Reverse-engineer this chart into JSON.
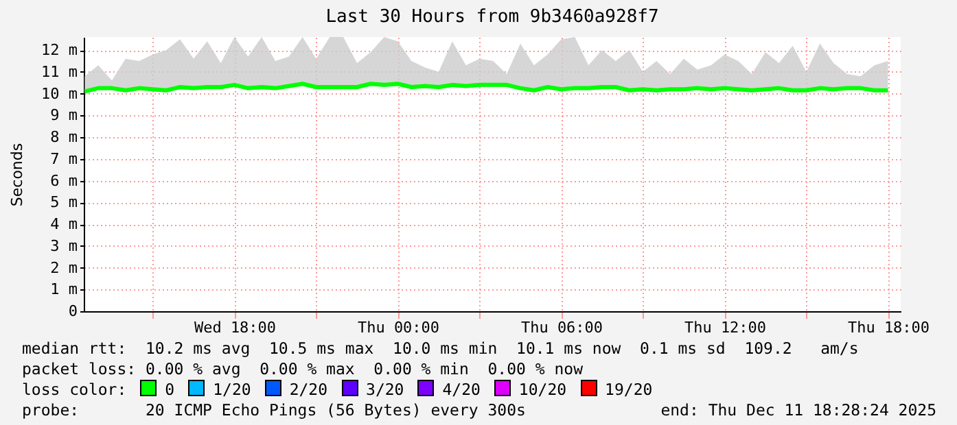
{
  "chart_data": {
    "type": "line",
    "title": "Last 30 Hours from 9b3460a928f7",
    "ylabel": "Seconds",
    "legend_title": "loss color:",
    "legend": "bottom",
    "grid": true,
    "marker": "none",
    "line_style": "solid",
    "xlim": [
      "2025-12-10T12:28",
      "2025-12-11T18:28"
    ],
    "xticks": [
      {
        "value": "2025-12-10T15:00",
        "label": null
      },
      {
        "value": "2025-12-10T18:00",
        "label": "Wed 18:00"
      },
      {
        "value": "2025-12-10T21:00",
        "label": null
      },
      {
        "value": "2025-12-11T00:00",
        "label": "Thu 00:00"
      },
      {
        "value": "2025-12-11T03:00",
        "label": null
      },
      {
        "value": "2025-12-11T06:00",
        "label": "Thu 06:00"
      },
      {
        "value": "2025-12-11T09:00",
        "label": null
      },
      {
        "value": "2025-12-11T12:00",
        "label": "Thu 12:00"
      },
      {
        "value": "2025-12-11T15:00",
        "label": null
      },
      {
        "value": "2025-12-11T18:00",
        "label": "Thu 18:00"
      }
    ],
    "ylim": [
      0,
      12.6
    ],
    "yticks": [
      0,
      {
        "value": 1,
        "label": "1 m"
      },
      {
        "value": 2,
        "label": "2 m"
      },
      {
        "value": 3,
        "label": "3 m"
      },
      {
        "value": 4,
        "label": "4 m"
      },
      {
        "value": 5,
        "label": "5 m"
      },
      {
        "value": 6,
        "label": "6 m"
      },
      {
        "value": 7,
        "label": "7 m"
      },
      {
        "value": 8,
        "label": "8 m"
      },
      {
        "value": 9,
        "label": "9 m"
      },
      {
        "value": 10,
        "label": "10 m"
      },
      {
        "value": 11,
        "label": "11 m"
      },
      {
        "value": 12,
        "label": "12 m"
      }
    ],
    "x": [
      "2025-12-10T12:30",
      "2025-12-10T13:00",
      "2025-12-10T13:30",
      "2025-12-10T14:00",
      "2025-12-10T14:30",
      "2025-12-10T15:00",
      "2025-12-10T15:30",
      "2025-12-10T16:00",
      "2025-12-10T16:30",
      "2025-12-10T17:00",
      "2025-12-10T17:30",
      "2025-12-10T18:00",
      "2025-12-10T18:30",
      "2025-12-10T19:00",
      "2025-12-10T19:30",
      "2025-12-10T20:00",
      "2025-12-10T20:30",
      "2025-12-10T21:00",
      "2025-12-10T21:30",
      "2025-12-10T22:00",
      "2025-12-10T22:30",
      "2025-12-10T23:00",
      "2025-12-10T23:30",
      "2025-12-11T00:00",
      "2025-12-11T00:30",
      "2025-12-11T01:00",
      "2025-12-11T01:30",
      "2025-12-11T02:00",
      "2025-12-11T02:30",
      "2025-12-11T03:00",
      "2025-12-11T03:30",
      "2025-12-11T04:00",
      "2025-12-11T04:30",
      "2025-12-11T05:00",
      "2025-12-11T05:30",
      "2025-12-11T06:00",
      "2025-12-11T06:30",
      "2025-12-11T07:00",
      "2025-12-11T07:30",
      "2025-12-11T08:00",
      "2025-12-11T08:30",
      "2025-12-11T09:00",
      "2025-12-11T09:30",
      "2025-12-11T10:00",
      "2025-12-11T10:30",
      "2025-12-11T11:00",
      "2025-12-11T11:30",
      "2025-12-11T12:00",
      "2025-12-11T12:30",
      "2025-12-11T13:00",
      "2025-12-11T13:30",
      "2025-12-11T14:00",
      "2025-12-11T14:30",
      "2025-12-11T15:00",
      "2025-12-11T15:30",
      "2025-12-11T16:00",
      "2025-12-11T16:30",
      "2025-12-11T17:00",
      "2025-12-11T17:30",
      "2025-12-11T18:00"
    ],
    "series": [
      {
        "name": "0",
        "color": "#00ff00",
        "values": [
          10.1,
          10.25,
          10.25,
          10.15,
          10.25,
          10.2,
          10.15,
          10.3,
          10.25,
          10.3,
          10.3,
          10.4,
          10.25,
          10.3,
          10.25,
          10.35,
          10.45,
          10.3,
          10.3,
          10.3,
          10.3,
          10.45,
          10.4,
          10.45,
          10.3,
          10.35,
          10.3,
          10.4,
          10.35,
          10.4,
          10.4,
          10.4,
          10.25,
          10.15,
          10.3,
          10.2,
          10.25,
          10.25,
          10.3,
          10.3,
          10.15,
          10.2,
          10.15,
          10.2,
          10.2,
          10.25,
          10.2,
          10.25,
          10.2,
          10.15,
          10.2,
          10.25,
          10.15,
          10.15,
          10.25,
          10.2,
          10.25,
          10.25,
          10.15,
          10.15
        ],
        "lower": [
          10.0,
          10.15,
          10.15,
          10.05,
          10.15,
          10.1,
          10.05,
          10.2,
          10.15,
          10.2,
          10.2,
          10.3,
          10.15,
          10.2,
          10.15,
          10.25,
          10.35,
          10.2,
          10.2,
          10.2,
          10.2,
          10.35,
          10.3,
          10.35,
          10.2,
          10.25,
          10.2,
          10.3,
          10.25,
          10.3,
          10.3,
          10.3,
          10.15,
          10.05,
          10.2,
          10.1,
          10.15,
          10.15,
          10.2,
          10.2,
          10.05,
          10.1,
          10.05,
          10.1,
          10.1,
          10.15,
          10.1,
          10.15,
          10.1,
          10.05,
          10.1,
          10.15,
          10.05,
          10.05,
          10.15,
          10.1,
          10.15,
          10.15,
          10.05,
          10.05
        ],
        "upper": [
          10.8,
          11.3,
          10.6,
          11.6,
          11.5,
          11.8,
          12.0,
          12.5,
          11.6,
          12.4,
          11.4,
          12.6,
          11.7,
          12.6,
          11.5,
          11.7,
          12.6,
          11.6,
          12.6,
          12.6,
          11.4,
          11.9,
          12.6,
          12.4,
          11.5,
          11.2,
          11.0,
          12.4,
          11.3,
          11.6,
          11.5,
          10.9,
          12.3,
          11.3,
          11.8,
          12.5,
          12.6,
          11.3,
          12.0,
          11.5,
          12.0,
          11.0,
          11.5,
          10.9,
          11.6,
          11.1,
          11.3,
          11.8,
          11.5,
          10.9,
          11.9,
          11.4,
          12.2,
          11.0,
          12.3,
          11.4,
          10.9,
          10.8,
          11.3,
          11.5
        ]
      },
      {
        "name": "1/20",
        "color": "#00b8ff",
        "values": [
          null,
          null,
          null,
          null,
          null,
          null,
          null,
          null,
          null,
          null,
          null,
          null,
          null,
          null,
          null,
          null,
          null,
          null,
          null,
          null,
          null,
          null,
          null,
          null,
          null,
          null,
          null,
          null,
          null,
          null,
          null,
          null,
          null,
          null,
          null,
          null,
          null,
          null,
          null,
          null,
          null,
          null,
          null,
          null,
          null,
          null,
          null,
          null,
          null,
          null,
          null,
          null,
          null,
          null,
          null,
          null,
          null,
          null,
          null,
          null
        ]
      },
      {
        "name": "2/20",
        "color": "#0059ff",
        "values": [
          null,
          null,
          null,
          null,
          null,
          null,
          null,
          null,
          null,
          null,
          null,
          null,
          null,
          null,
          null,
          null,
          null,
          null,
          null,
          null,
          null,
          null,
          null,
          null,
          null,
          null,
          null,
          null,
          null,
          null,
          null,
          null,
          null,
          null,
          null,
          null,
          null,
          null,
          null,
          null,
          null,
          null,
          null,
          null,
          null,
          null,
          null,
          null,
          null,
          null,
          null,
          null,
          null,
          null,
          null,
          null,
          null,
          null,
          null,
          null
        ]
      },
      {
        "name": "3/20",
        "color": "#5e00ff",
        "values": [
          null,
          null,
          null,
          null,
          null,
          null,
          null,
          null,
          null,
          null,
          null,
          null,
          null,
          null,
          null,
          null,
          null,
          null,
          null,
          null,
          null,
          null,
          null,
          null,
          null,
          null,
          null,
          null,
          null,
          null,
          null,
          null,
          null,
          null,
          null,
          null,
          null,
          null,
          null,
          null,
          null,
          null,
          null,
          null,
          null,
          null,
          null,
          null,
          null,
          null,
          null,
          null,
          null,
          null,
          null,
          null,
          null,
          null,
          null,
          null
        ]
      },
      {
        "name": "4/20",
        "color": "#7e00ff",
        "values": [
          null,
          null,
          null,
          null,
          null,
          null,
          null,
          null,
          null,
          null,
          null,
          null,
          null,
          null,
          null,
          null,
          null,
          null,
          null,
          null,
          null,
          null,
          null,
          null,
          null,
          null,
          null,
          null,
          null,
          null,
          null,
          null,
          null,
          null,
          null,
          null,
          null,
          null,
          null,
          null,
          null,
          null,
          null,
          null,
          null,
          null,
          null,
          null,
          null,
          null,
          null,
          null,
          null,
          null,
          null,
          null,
          null,
          null,
          null,
          null
        ]
      },
      {
        "name": "10/20",
        "color": "#dd00ff",
        "values": [
          null,
          null,
          null,
          null,
          null,
          null,
          null,
          null,
          null,
          null,
          null,
          null,
          null,
          null,
          null,
          null,
          null,
          null,
          null,
          null,
          null,
          null,
          null,
          null,
          null,
          null,
          null,
          null,
          null,
          null,
          null,
          null,
          null,
          null,
          null,
          null,
          null,
          null,
          null,
          null,
          null,
          null,
          null,
          null,
          null,
          null,
          null,
          null,
          null,
          null,
          null,
          null,
          null,
          null,
          null,
          null,
          null,
          null,
          null,
          null
        ]
      },
      {
        "name": "19/20",
        "color": "#ff0000",
        "values": [
          null,
          null,
          null,
          null,
          null,
          null,
          null,
          null,
          null,
          null,
          null,
          null,
          null,
          null,
          null,
          null,
          null,
          null,
          null,
          null,
          null,
          null,
          null,
          null,
          null,
          null,
          null,
          null,
          null,
          null,
          null,
          null,
          null,
          null,
          null,
          null,
          null,
          null,
          null,
          null,
          null,
          null,
          null,
          null,
          null,
          null,
          null,
          null,
          null,
          null,
          null,
          null,
          null,
          null,
          null,
          null,
          null,
          null,
          null,
          null
        ]
      }
    ],
    "annotations": [
      "median rtt:  10.2 ms avg  10.5 ms max  10.0 ms min  10.1 ms now  0.1 ms sd  109.2   am/s",
      "packet loss: 0.00 % avg  0.00 % max  0.00 % min  0.00 % now",
      "probe:       20 ICMP Echo Pings (56 Bytes) every 300s",
      "end: Thu Dec 11 18:28:24 2025"
    ]
  }
}
